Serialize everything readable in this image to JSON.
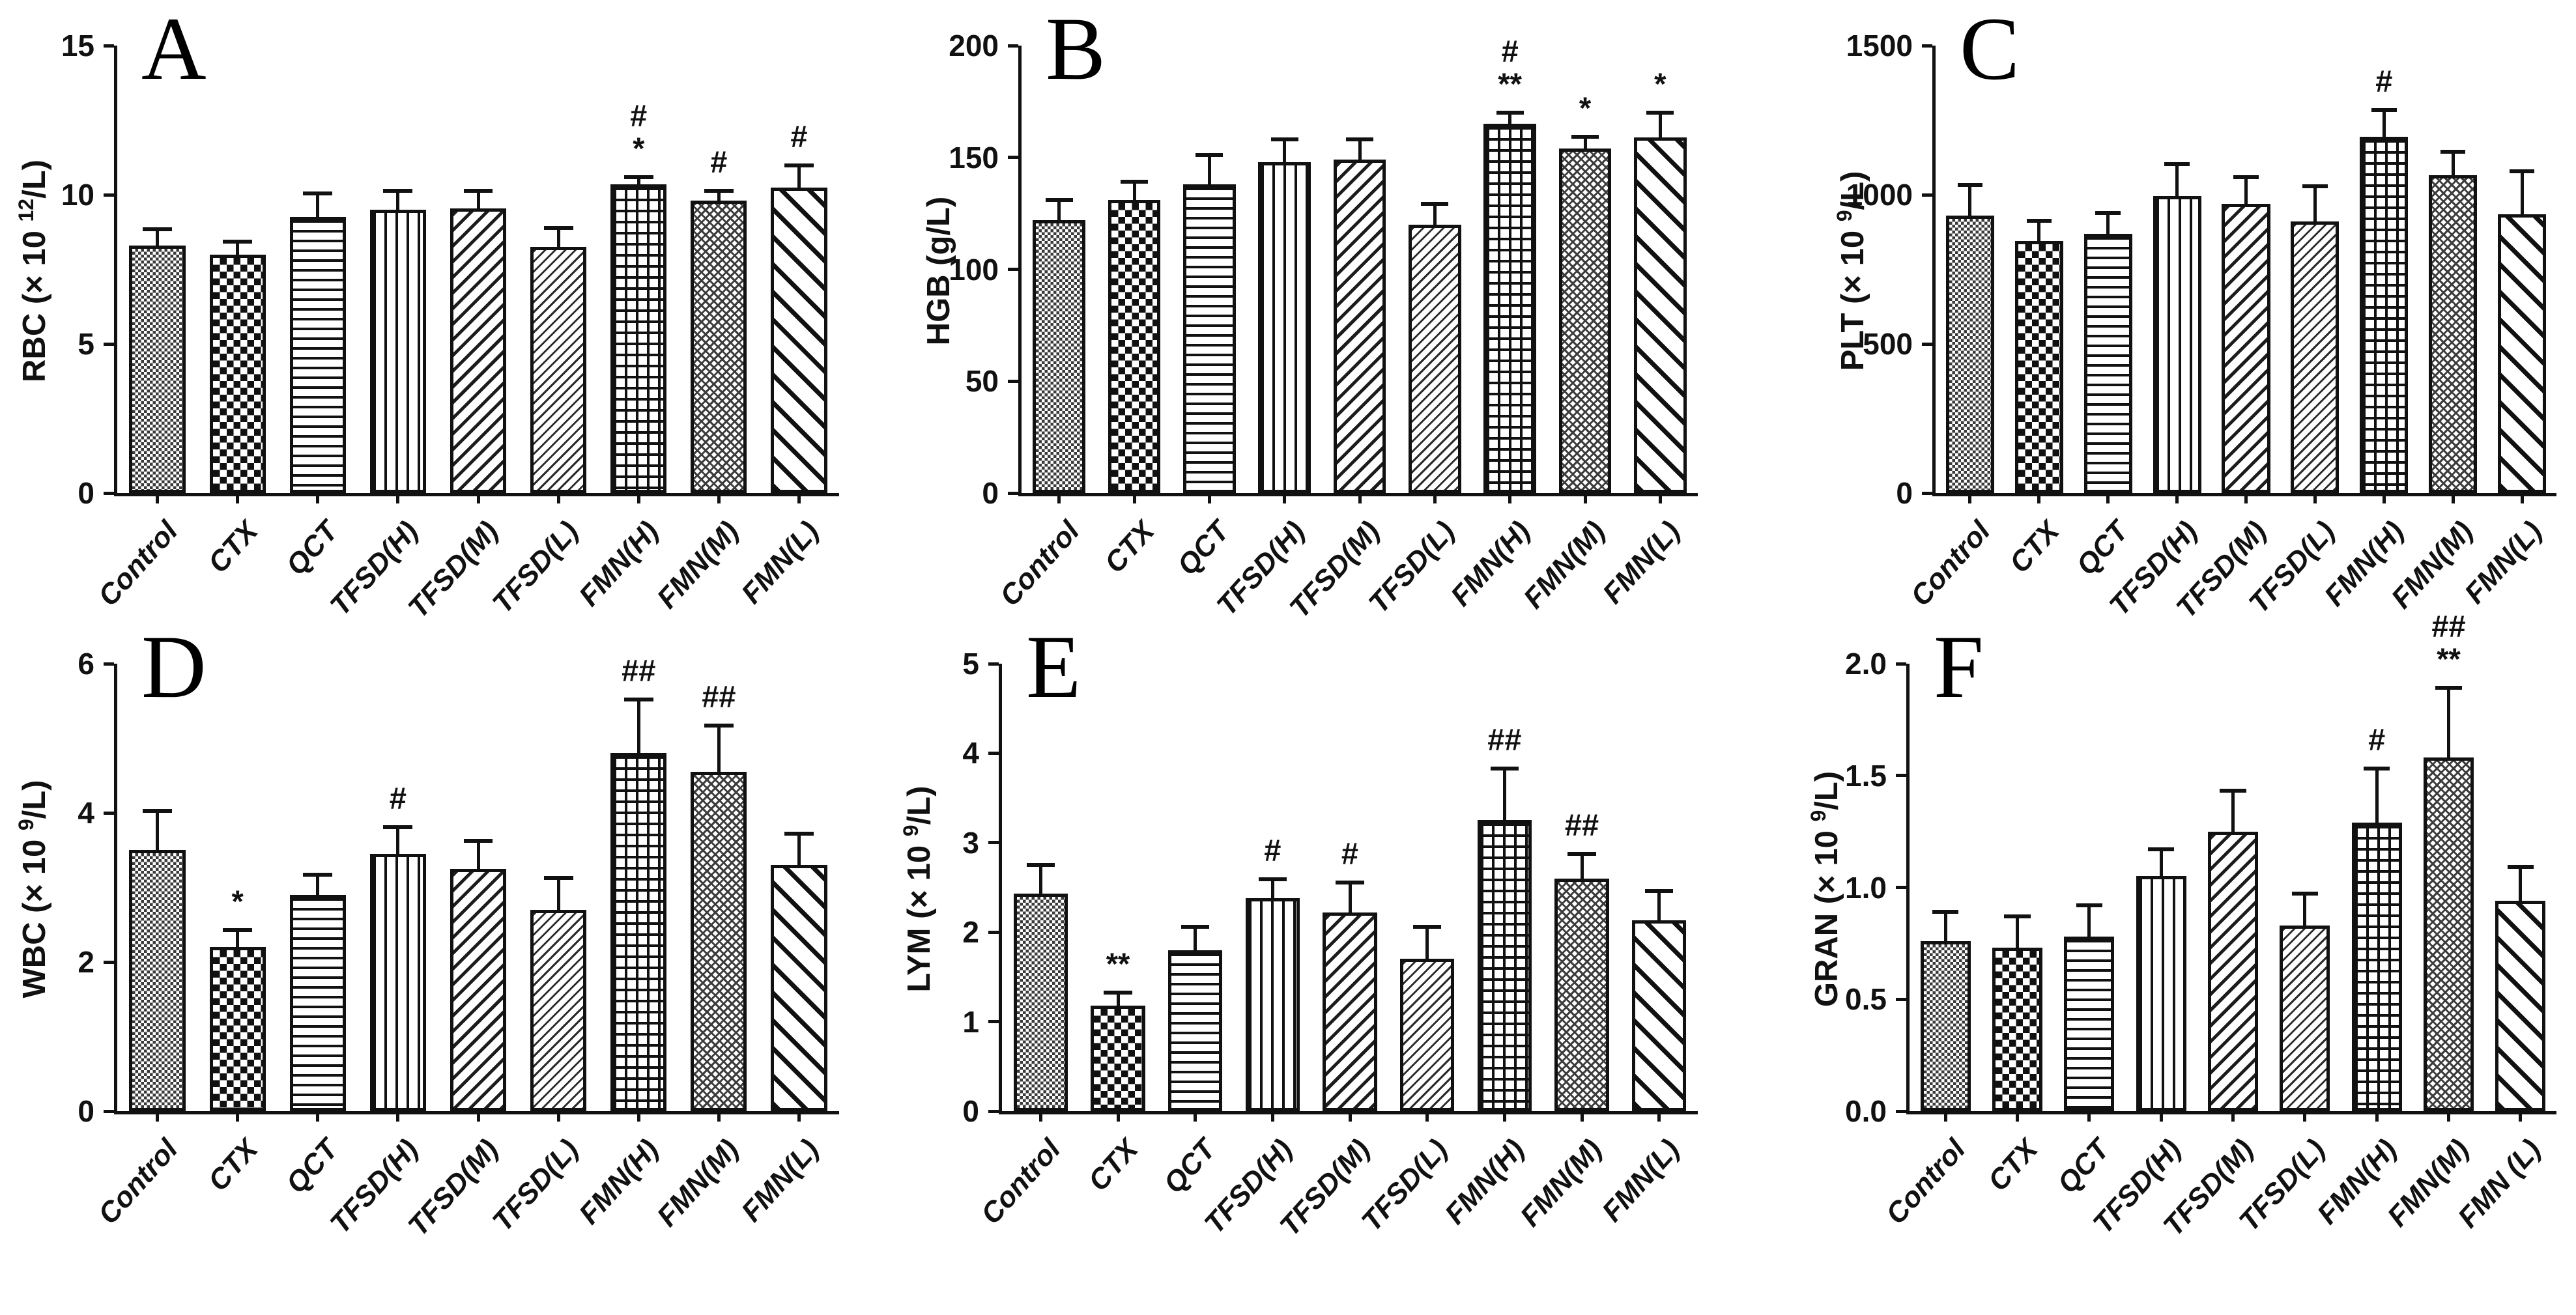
{
  "colors": {
    "ink": "#111111",
    "background": "#ffffff"
  },
  "patterns": [
    "pat-fine-check",
    "pat-coarse-check",
    "pat-hlines",
    "pat-vlines",
    "pat-diag-med",
    "pat-diag-fine",
    "pat-grid",
    "pat-diag-cross",
    "pat-diag-bold"
  ],
  "pattern_names": [
    "fine-checkerboard",
    "coarse-checkerboard",
    "horizontal-lines",
    "vertical-lines",
    "diagonal-hatch-medium",
    "diagonal-hatch-fine",
    "square-grid",
    "diagonal-crosshatch-fine",
    "diagonal-hatch-bold"
  ],
  "chart_data": [
    {
      "letter": "A",
      "type": "bar",
      "ylabel_prefix": "RBC (× 10 ",
      "ylabel_sup": "12",
      "ylabel_suffix": "/L)",
      "ylabel_full": "RBC (× 10^12/L)",
      "ylim": [
        0,
        15
      ],
      "yticks": [
        0,
        5,
        10,
        15
      ],
      "ytick_labels": [
        "0",
        "5",
        "10",
        "15"
      ],
      "categories": [
        "Control",
        "CTX",
        "QCT",
        "TFSD(H)",
        "TFSD(M)",
        "TFSD(L)",
        "FMN(H)",
        "FMN(M)",
        "FMN(L)"
      ],
      "values": [
        8.3,
        8.0,
        9.25,
        9.5,
        9.55,
        8.25,
        10.35,
        9.8,
        10.25
      ],
      "errors": [
        0.6,
        0.5,
        0.85,
        0.7,
        0.65,
        0.7,
        0.3,
        0.4,
        0.8
      ],
      "annotations": [
        null,
        null,
        null,
        null,
        null,
        null,
        [
          "#",
          "*"
        ],
        [
          "#"
        ],
        [
          "#"
        ]
      ]
    },
    {
      "letter": "B",
      "type": "bar",
      "ylabel_prefix": "HGB (g/L)",
      "ylabel_sup": "",
      "ylabel_suffix": "",
      "ylabel_full": "HGB (g/L)",
      "ylim": [
        0,
        200
      ],
      "yticks": [
        0,
        50,
        100,
        150,
        200
      ],
      "ytick_labels": [
        "0",
        "50",
        "100",
        "150",
        "200"
      ],
      "categories": [
        "Control",
        "CTX",
        "QCT",
        "TFSD(H)",
        "TFSD(M)",
        "TFSD(L)",
        "FMN(H)",
        "FMN(M)",
        "FMN(L)"
      ],
      "values": [
        122,
        131,
        138,
        148,
        149,
        120,
        165,
        154,
        159
      ],
      "errors": [
        10,
        9,
        14,
        11,
        10,
        10,
        6,
        6,
        12
      ],
      "annotations": [
        null,
        null,
        null,
        null,
        null,
        null,
        [
          "#",
          "**"
        ],
        [
          "*"
        ],
        [
          "*"
        ]
      ]
    },
    {
      "letter": "C",
      "type": "bar",
      "ylabel_prefix": "PLT  (× 10 ",
      "ylabel_sup": "9",
      "ylabel_suffix": "/L)",
      "ylabel_full": "PLT (× 10^9/L)",
      "ylim": [
        0,
        1500
      ],
      "yticks": [
        0,
        500,
        1000,
        1500
      ],
      "ytick_labels": [
        "0",
        "500",
        "1000",
        "1500"
      ],
      "categories": [
        "Control",
        "CTX",
        "QCT",
        "TFSD(H)",
        "TFSD(M)",
        "TFSD(L)",
        "FMN(H)",
        "FMN(M)",
        "FMN(L)"
      ],
      "values": [
        930,
        845,
        870,
        995,
        970,
        910,
        1195,
        1065,
        935
      ],
      "errors": [
        110,
        75,
        75,
        115,
        95,
        125,
        95,
        85,
        150
      ],
      "annotations": [
        null,
        null,
        null,
        null,
        null,
        null,
        [
          "#"
        ],
        null,
        null
      ]
    },
    {
      "letter": "D",
      "type": "bar",
      "ylabel_prefix": "WBC (× 10 ",
      "ylabel_sup": "9",
      "ylabel_suffix": "/L)",
      "ylabel_full": "WBC (× 10^9/L)",
      "ylim": [
        0,
        6
      ],
      "yticks": [
        0,
        2,
        4,
        6
      ],
      "ytick_labels": [
        "0",
        "2",
        "4",
        "6"
      ],
      "categories": [
        "Control",
        "CTX",
        "QCT",
        "TFSD(H)",
        "TFSD(M)",
        "TFSD(L)",
        "FMN(H)",
        "FMN(M)",
        "FMN(L)"
      ],
      "values": [
        3.5,
        2.2,
        2.9,
        3.45,
        3.25,
        2.7,
        4.8,
        4.55,
        3.3
      ],
      "errors": [
        0.55,
        0.25,
        0.3,
        0.38,
        0.4,
        0.45,
        0.75,
        0.65,
        0.45
      ],
      "annotations": [
        null,
        [
          "*"
        ],
        null,
        [
          "#"
        ],
        null,
        null,
        [
          "##"
        ],
        [
          "##"
        ],
        null
      ]
    },
    {
      "letter": "E",
      "type": "bar",
      "ylabel_prefix": "LYM  (× 10 ",
      "ylabel_sup": "9",
      "ylabel_suffix": "/L)",
      "ylabel_full": "LYM (× 10^9/L)",
      "ylim": [
        0,
        5
      ],
      "yticks": [
        0,
        1,
        2,
        3,
        4,
        5
      ],
      "ytick_labels": [
        "0",
        "1",
        "2",
        "3",
        "4",
        "5"
      ],
      "categories": [
        "Control",
        "CTX",
        "QCT",
        "TFSD(H)",
        "TFSD(M)",
        "TFSD(L)",
        "FMN(H)",
        "FMN(M)",
        "FMN(L)"
      ],
      "values": [
        2.43,
        1.18,
        1.8,
        2.38,
        2.22,
        1.7,
        3.25,
        2.6,
        2.13
      ],
      "errors": [
        0.34,
        0.17,
        0.28,
        0.23,
        0.36,
        0.38,
        0.6,
        0.3,
        0.35
      ],
      "annotations": [
        null,
        [
          "**"
        ],
        null,
        [
          "#"
        ],
        [
          "#"
        ],
        null,
        [
          "##"
        ],
        [
          "##"
        ],
        null
      ]
    },
    {
      "letter": "F",
      "type": "bar",
      "ylabel_prefix": "GRAN (× 10 ",
      "ylabel_sup": "9",
      "ylabel_suffix": "/L)",
      "ylabel_full": "GRAN (× 10^9/L)",
      "ylim": [
        0,
        2
      ],
      "yticks": [
        0,
        0.5,
        1,
        1.5,
        2
      ],
      "ytick_labels": [
        "0.0",
        "0.5",
        "1.0",
        "1.5",
        "2.0"
      ],
      "categories": [
        "Control",
        "CTX",
        "QCT",
        "TFSD(H)",
        "TFSD(M)",
        "TFSD(L)",
        "FMN(H)",
        "FMN(M)",
        "FMN (L)"
      ],
      "values": [
        0.76,
        0.73,
        0.78,
        1.05,
        1.25,
        0.83,
        1.29,
        1.58,
        0.94
      ],
      "errors": [
        0.14,
        0.15,
        0.15,
        0.13,
        0.19,
        0.15,
        0.25,
        0.32,
        0.16
      ],
      "annotations": [
        null,
        null,
        null,
        null,
        null,
        null,
        [
          "#"
        ],
        [
          "##",
          "**"
        ],
        null
      ]
    }
  ]
}
